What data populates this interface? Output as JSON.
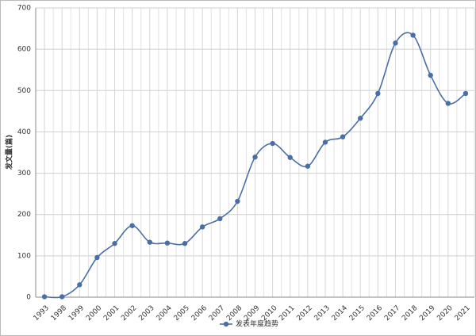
{
  "chart_data": {
    "type": "line",
    "y_label": "发文量(篇)",
    "categories": [
      "1993",
      "1998",
      "1999",
      "2000",
      "2001",
      "2002",
      "2003",
      "2004",
      "2005",
      "2006",
      "2007",
      "2008",
      "2009",
      "2010",
      "2011",
      "2012",
      "2013",
      "2014",
      "2015",
      "2016",
      "2017",
      "2018",
      "2019",
      "2020",
      "2021"
    ],
    "series": [
      {
        "name": "发表年度趋势",
        "color": "#4a6fa5",
        "values": [
          1,
          1,
          30,
          96,
          130,
          173,
          133,
          131,
          130,
          170,
          190,
          232,
          339,
          372,
          338,
          317,
          375,
          388,
          433,
          493,
          615,
          634,
          537,
          469,
          493
        ]
      }
    ],
    "ylim": [
      0,
      700
    ],
    "yticks": [
      0,
      100,
      200,
      300,
      400,
      500,
      600,
      700
    ],
    "grid": true,
    "smooth": true
  }
}
